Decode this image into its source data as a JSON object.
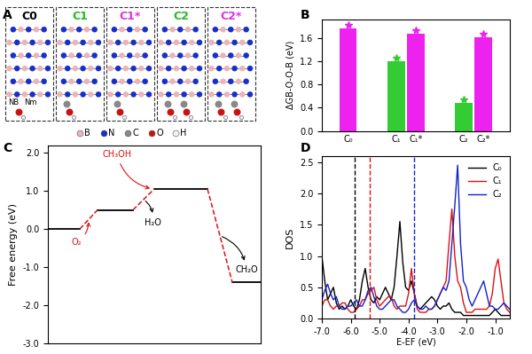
{
  "diagram": {
    "panel": "A",
    "structures": [
      {
        "label": "C0",
        "color": "#000000"
      },
      {
        "label": "C1",
        "color": "#22bb22"
      },
      {
        "label": "C1*",
        "color": "#dd33dd"
      },
      {
        "label": "C2",
        "color": "#22bb22"
      },
      {
        "label": "C2*",
        "color": "#dd33dd"
      }
    ],
    "atoms": [
      {
        "label": "B",
        "color": "#eab4b8"
      },
      {
        "label": "N",
        "color": "#1a2fc8"
      },
      {
        "label": "C",
        "color": "#888888"
      },
      {
        "label": "O",
        "color": "#cc1111"
      },
      {
        "label": "H",
        "color": "#f2f2f2"
      }
    ],
    "site_labels": [
      "NB",
      "Nm"
    ]
  },
  "chart_data": [
    {
      "panel": "B",
      "type": "bar",
      "ylabel": "ΔGB-O-O-B (eV)",
      "categories": [
        "C₀",
        "C₁",
        "C₁*",
        "C₂",
        "C₂*"
      ],
      "values": [
        1.77,
        1.2,
        1.68,
        0.49,
        1.61
      ],
      "colors": [
        "#ee22ee",
        "#33cc33",
        "#ee22ee",
        "#33cc33",
        "#ee22ee"
      ],
      "marker": "*",
      "ylim": [
        0,
        1.92
      ],
      "yticks": [
        {
          "value": 0,
          "label": "0.0"
        },
        0.4,
        0.8,
        1.2,
        1.6
      ]
    },
    {
      "panel": "C",
      "type": "energy_diagram",
      "ylabel": "Free energy (eV)",
      "values": [
        0.0,
        0.5,
        1.05,
        -1.4
      ],
      "color": "#dd1111",
      "line_style": "dashed",
      "tick_labels": "y",
      "annotations": [
        {
          "text": "O₂",
          "color": "#dd1111"
        },
        {
          "text": "H₂O",
          "color": "#000000"
        },
        {
          "text": "CH₃OH",
          "color": "#dd1111"
        },
        {
          "text": "CH₂O",
          "color": "#000000"
        }
      ],
      "ylim": [
        -3.0,
        2.2
      ],
      "yticks": [
        {
          "value": -3,
          "label": "-3.0"
        },
        {
          "value": -2,
          "label": "-2.0"
        },
        {
          "value": -1,
          "label": "-1.0"
        },
        {
          "value": 0,
          "label": "0.0"
        },
        {
          "value": 1,
          "label": "1.0"
        },
        {
          "value": 2,
          "label": "2.0"
        }
      ]
    },
    {
      "panel": "D",
      "type": "line",
      "xlabel": "E-EF (eV)",
      "ylabel": "DOS",
      "legend": "upper right",
      "x": [
        -7.0,
        -6.9,
        -6.8,
        -6.7,
        -6.6,
        -6.5,
        -6.4,
        -6.3,
        -6.2,
        -6.1,
        -6.0,
        -5.9,
        -5.8,
        -5.7,
        -5.6,
        -5.5,
        -5.4,
        -5.3,
        -5.2,
        -5.1,
        -5.0,
        -4.9,
        -4.8,
        -4.7,
        -4.6,
        -4.5,
        -4.4,
        -4.3,
        -4.2,
        -4.1,
        -4.0,
        -3.9,
        -3.8,
        -3.7,
        -3.6,
        -3.5,
        -3.4,
        -3.3,
        -3.2,
        -3.1,
        -3.0,
        -2.9,
        -2.8,
        -2.7,
        -2.6,
        -2.5,
        -2.4,
        -2.3,
        -2.2,
        -2.1,
        -2.0,
        -1.9,
        -1.8,
        -1.7,
        -1.6,
        -1.5,
        -1.4,
        -1.3,
        -1.2,
        -1.1,
        -1.0,
        -0.9,
        -0.8,
        -0.7,
        -0.6,
        -0.5
      ],
      "series": [
        {
          "name": "C₀",
          "color": "#000000",
          "values": [
            1.0,
            0.6,
            0.3,
            0.4,
            0.5,
            0.25,
            0.15,
            0.2,
            0.15,
            0.2,
            0.3,
            0.2,
            0.15,
            0.3,
            0.6,
            0.8,
            0.5,
            0.3,
            0.25,
            0.35,
            0.3,
            0.4,
            0.5,
            0.4,
            0.3,
            0.5,
            1.0,
            1.55,
            0.9,
            0.5,
            0.45,
            0.6,
            0.4,
            0.2,
            0.15,
            0.2,
            0.25,
            0.3,
            0.35,
            0.3,
            0.2,
            0.15,
            0.2,
            0.2,
            0.25,
            0.15,
            0.1,
            0.1,
            0.1,
            0.05,
            0.05,
            0.05,
            0.05,
            0.05,
            0.05,
            0.05,
            0.05,
            0.05,
            0.05,
            0.1,
            0.15,
            0.1,
            0.05,
            0.05,
            0.05,
            0.05
          ]
        },
        {
          "name": "C₁",
          "color": "#dd1111",
          "values": [
            0.2,
            0.3,
            0.3,
            0.2,
            0.15,
            0.2,
            0.2,
            0.25,
            0.25,
            0.15,
            0.1,
            0.1,
            0.15,
            0.2,
            0.3,
            0.3,
            0.4,
            0.45,
            0.5,
            0.3,
            0.2,
            0.25,
            0.3,
            0.35,
            0.35,
            0.2,
            0.15,
            0.2,
            0.2,
            0.2,
            0.4,
            0.8,
            0.4,
            0.15,
            0.1,
            0.1,
            0.1,
            0.15,
            0.15,
            0.2,
            0.3,
            0.4,
            0.5,
            0.6,
            1.2,
            1.75,
            1.0,
            0.6,
            0.5,
            0.25,
            0.1,
            0.1,
            0.1,
            0.15,
            0.15,
            0.15,
            0.15,
            0.15,
            0.2,
            0.4,
            0.8,
            0.95,
            0.6,
            0.25,
            0.15,
            0.1
          ]
        },
        {
          "name": "C₂",
          "color": "#1122cc",
          "values": [
            0.3,
            0.45,
            0.55,
            0.4,
            0.3,
            0.35,
            0.2,
            0.15,
            0.15,
            0.2,
            0.2,
            0.25,
            0.3,
            0.2,
            0.2,
            0.3,
            0.45,
            0.5,
            0.35,
            0.2,
            0.15,
            0.15,
            0.2,
            0.25,
            0.3,
            0.3,
            0.2,
            0.15,
            0.1,
            0.1,
            0.15,
            0.25,
            0.3,
            0.2,
            0.15,
            0.15,
            0.2,
            0.15,
            0.15,
            0.2,
            0.3,
            0.4,
            0.5,
            0.45,
            0.6,
            1.2,
            1.8,
            2.45,
            1.2,
            0.6,
            0.5,
            0.3,
            0.2,
            0.3,
            0.4,
            0.5,
            0.6,
            0.4,
            0.2,
            0.2,
            0.15,
            0.15,
            0.2,
            0.25,
            0.2,
            0.15
          ]
        }
      ],
      "vlines": [
        {
          "x": -5.85,
          "color": "#000000"
        },
        {
          "x": -5.35,
          "color": "#dd1111"
        },
        {
          "x": -3.8,
          "color": "#1122cc"
        }
      ],
      "line_style": "dashed",
      "xlim": [
        -7.0,
        -0.5
      ],
      "ylim": [
        0,
        2.6
      ],
      "xticks": [
        {
          "value": -7,
          "label": "-7.0"
        },
        {
          "value": -6,
          "label": "-6.0"
        },
        {
          "value": -5,
          "label": "-5.0"
        },
        {
          "value": -4,
          "label": "-4.0"
        },
        {
          "value": -3,
          "label": "-3.0"
        },
        {
          "value": -2,
          "label": "-2.0"
        },
        {
          "value": -1,
          "label": "-1.0"
        }
      ],
      "yticks": [
        {
          "value": 0,
          "label": "0.0"
        },
        0.5,
        1.0,
        1.5,
        2.0,
        2.5
      ]
    }
  ]
}
